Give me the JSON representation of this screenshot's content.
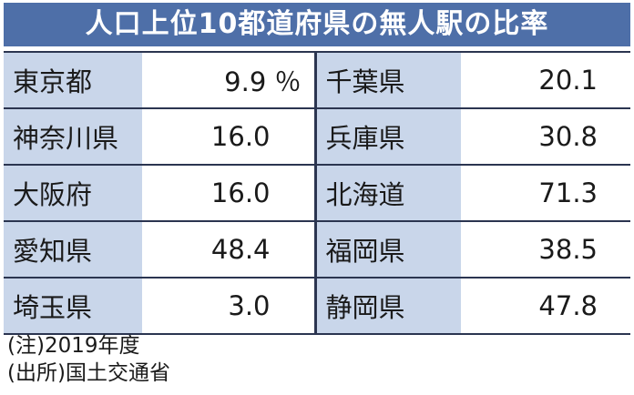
{
  "header": {
    "title": "人口上位10都道府県の無人駅の比率"
  },
  "table": {
    "rows": [
      [
        "東京都",
        "9.9 ％",
        "千葉県",
        "20.1"
      ],
      [
        "神奈川県",
        "16.0",
        "兵庫県",
        "30.8"
      ],
      [
        "大阪府",
        "16.0",
        "北海道",
        "71.3"
      ],
      [
        "愛知県",
        "48.4",
        "福岡県",
        "38.5"
      ],
      [
        "埼玉県",
        "3.0",
        "静岡県",
        "47.8"
      ]
    ]
  },
  "notes": [
    "(注)2019年度",
    "(出所)国土交通省"
  ]
}
